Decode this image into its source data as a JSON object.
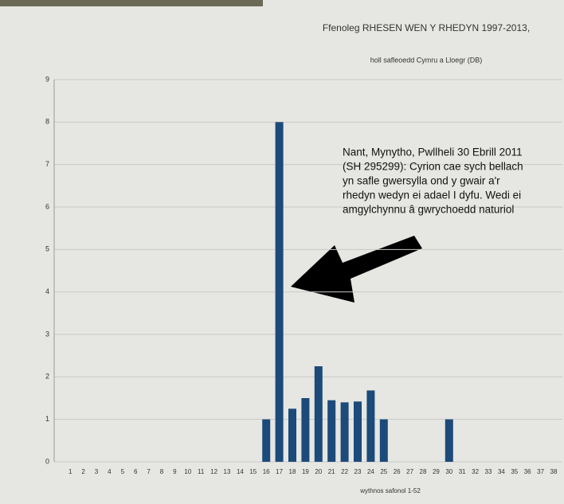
{
  "chart_data": {
    "type": "bar",
    "title": "Ffenoleg RHESEN WEN Y RHEDYN 1997-2013,",
    "subtitle": "holl safleoedd Cymru a Lloegr (DB)",
    "x_label": "wythnos safonol 1-52",
    "annotation": [
      "Nant, Mynytho, Pwllheli 30 Ebrill 2011",
      "(SH 295299): Cyrion cae sych bellach",
      "yn safle gwersylla ond y gwair a'r",
      "rhedyn wedyn ei adael I dyfu. Wedi ei",
      "amgylchynnu â gwrychoedd naturiol"
    ],
    "categories": [
      "1",
      "2",
      "3",
      "4",
      "5",
      "6",
      "7",
      "8",
      "9",
      "10",
      "11",
      "12",
      "13",
      "14",
      "15",
      "16",
      "17",
      "18",
      "19",
      "20",
      "21",
      "22",
      "23",
      "24",
      "25",
      "26",
      "27",
      "28",
      "29",
      "30",
      "31",
      "32",
      "33",
      "34",
      "35",
      "36",
      "37",
      "38"
    ],
    "values": [
      0,
      0,
      0,
      0,
      0,
      0,
      0,
      0,
      0,
      0,
      0,
      0,
      0,
      0,
      0,
      1,
      8,
      1.25,
      1.5,
      2.25,
      1.45,
      1.4,
      1.42,
      1.68,
      1,
      0,
      0,
      0,
      0,
      1,
      0,
      0,
      0,
      0,
      0,
      0,
      0,
      0
    ],
    "color": "#1c4a7a",
    "ylim": [
      0,
      9
    ],
    "yticks": [
      0,
      1,
      2,
      3,
      4,
      5,
      6,
      7,
      8,
      9
    ],
    "grid": true
  }
}
